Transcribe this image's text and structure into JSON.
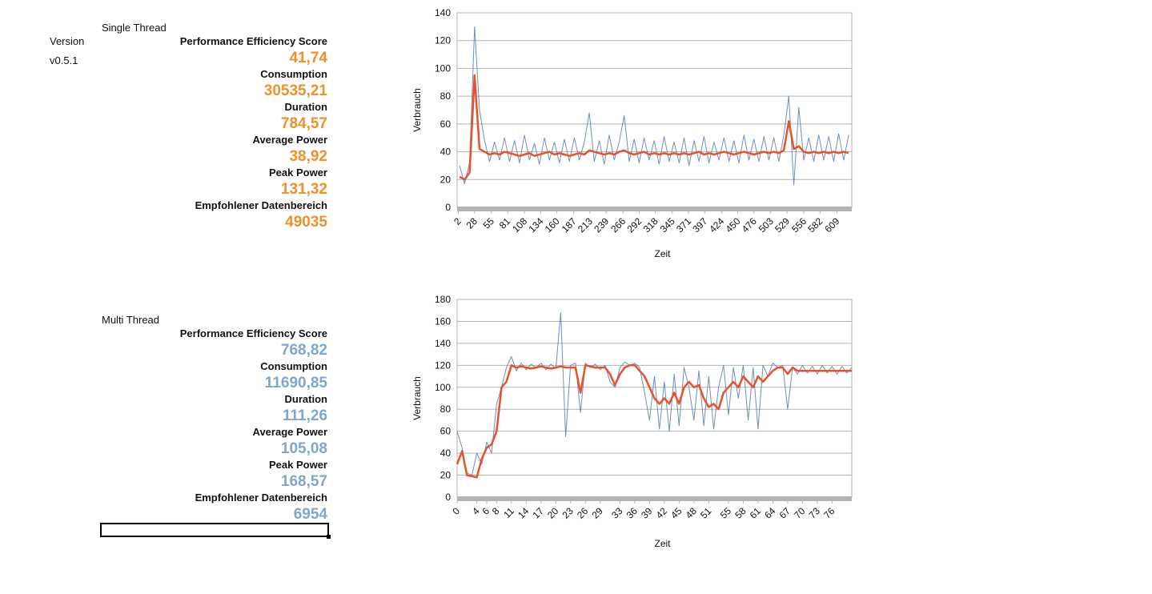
{
  "sheet": {
    "version_label": "Version",
    "version": "v0.5.1",
    "sections": [
      {
        "title": "Single Thread",
        "value_color": "#f0902a",
        "metrics": [
          {
            "label": "Performance Efficiency Score",
            "value": "41,74"
          },
          {
            "label": "Consumption",
            "value": "30535,21"
          },
          {
            "label": "Duration",
            "value": "784,57"
          },
          {
            "label": "Average Power",
            "value": "38,92"
          },
          {
            "label": "Peak Power",
            "value": "131,32"
          },
          {
            "label": "Empfohlener Datenbereich",
            "value": "49035"
          }
        ]
      },
      {
        "title": "Multi Thread",
        "value_color": "#7ea6d0",
        "metrics": [
          {
            "label": "Performance Efficiency Score",
            "value": "768,82"
          },
          {
            "label": "Consumption",
            "value": "11690,85"
          },
          {
            "label": "Duration",
            "value": "111,26"
          },
          {
            "label": "Average Power",
            "value": "105,08"
          },
          {
            "label": "Peak Power",
            "value": "168,57"
          },
          {
            "label": "Empfohlener Datenbereich",
            "value": "6954"
          }
        ]
      }
    ]
  },
  "chart_data": [
    {
      "type": "line",
      "x_label": "Zeit",
      "y_label": "Verbrauch",
      "grid": true,
      "xlim": [
        0,
        633
      ],
      "ylim": [
        0,
        140
      ],
      "xticks": [
        2,
        28,
        55,
        81,
        108,
        134,
        160,
        187,
        213,
        239,
        266,
        292,
        318,
        345,
        371,
        397,
        424,
        450,
        476,
        503,
        529,
        556,
        582,
        609
      ],
      "yticks": [
        0,
        20,
        40,
        60,
        80,
        100,
        120,
        140
      ],
      "x": [
        4,
        12,
        20,
        28,
        36,
        44,
        52,
        60,
        68,
        76,
        84,
        92,
        100,
        108,
        116,
        124,
        132,
        140,
        148,
        156,
        164,
        172,
        180,
        188,
        196,
        204,
        212,
        220,
        228,
        236,
        244,
        252,
        260,
        268,
        276,
        284,
        292,
        300,
        308,
        316,
        324,
        332,
        340,
        348,
        356,
        364,
        372,
        380,
        388,
        396,
        404,
        412,
        420,
        428,
        436,
        444,
        452,
        460,
        468,
        476,
        484,
        492,
        500,
        508,
        516,
        524,
        532,
        540,
        548,
        556,
        564,
        572,
        580,
        588,
        596,
        604,
        612,
        620,
        628
      ],
      "series": [
        {
          "color": "#3f6aa8",
          "values": [
            30,
            17,
            32,
            130,
            70,
            48,
            33,
            47,
            34,
            50,
            33,
            48,
            32,
            52,
            34,
            46,
            31,
            50,
            34,
            47,
            32,
            49,
            33,
            50,
            34,
            47,
            68,
            33,
            48,
            31,
            52,
            34,
            47,
            66,
            33,
            49,
            32,
            50,
            34,
            48,
            31,
            51,
            33,
            47,
            32,
            50,
            30,
            48,
            33,
            51,
            32,
            47,
            34,
            50,
            33,
            48,
            32,
            52,
            34,
            49,
            33,
            51,
            34,
            50,
            33,
            52,
            80,
            16,
            72,
            34,
            50,
            33,
            52,
            34,
            51,
            33,
            53,
            34,
            52
          ]
        },
        {
          "color": "#e8522a",
          "values": [
            22,
            20,
            25,
            95,
            42,
            40,
            38,
            39,
            38,
            40,
            39,
            38,
            37,
            38,
            39,
            37,
            38,
            39,
            40,
            38,
            39,
            38,
            37,
            38,
            39,
            38,
            41,
            40,
            39,
            38,
            39,
            38,
            40,
            41,
            39,
            38,
            39,
            40,
            38,
            39,
            38,
            39,
            38,
            39,
            38,
            39,
            38,
            39,
            40,
            38,
            39,
            38,
            39,
            40,
            39,
            38,
            39,
            40,
            39,
            38,
            39,
            40,
            39,
            40,
            39,
            41,
            62,
            42,
            44,
            40,
            39,
            40,
            39,
            40,
            39,
            40,
            39,
            40,
            39
          ]
        }
      ]
    },
    {
      "type": "line",
      "x_label": "Zeit",
      "y_label": "Verbrauch",
      "grid": true,
      "xlim": [
        0,
        80
      ],
      "ylim": [
        0,
        180
      ],
      "xticks": [
        0,
        4,
        6,
        8,
        11,
        14,
        17,
        20,
        23,
        26,
        29,
        33,
        36,
        39,
        42,
        45,
        48,
        51,
        55,
        58,
        61,
        64,
        67,
        70,
        73,
        76
      ],
      "yticks": [
        0,
        20,
        40,
        60,
        80,
        100,
        120,
        140,
        160,
        180
      ],
      "x": [
        0,
        1,
        2,
        3,
        4,
        5,
        6,
        7,
        8,
        9,
        10,
        11,
        12,
        13,
        14,
        15,
        16,
        17,
        18,
        19,
        20,
        21,
        22,
        23,
        24,
        25,
        26,
        27,
        28,
        29,
        30,
        31,
        32,
        33,
        34,
        35,
        36,
        37,
        38,
        39,
        40,
        41,
        42,
        43,
        44,
        45,
        46,
        47,
        48,
        49,
        50,
        51,
        52,
        53,
        54,
        55,
        56,
        57,
        58,
        59,
        60,
        61,
        62,
        63,
        64,
        65,
        66,
        67,
        68,
        69,
        70,
        71,
        72,
        73,
        74,
        75,
        76,
        77,
        78,
        79,
        80
      ],
      "series": [
        {
          "color": "#3f6aa8",
          "values": [
            60,
            45,
            22,
            20,
            40,
            30,
            50,
            40,
            85,
            100,
            118,
            128,
            115,
            122,
            116,
            121,
            118,
            122,
            116,
            121,
            117,
            168,
            55,
            120,
            122,
            77,
            122,
            118,
            121,
            116,
            120,
            105,
            100,
            118,
            123,
            120,
            122,
            118,
            95,
            70,
            110,
            62,
            105,
            60,
            112,
            65,
            118,
            100,
            70,
            115,
            65,
            110,
            62,
            100,
            120,
            75,
            118,
            90,
            120,
            70,
            118,
            62,
            120,
            110,
            122,
            118,
            120,
            80,
            118,
            112,
            120,
            113,
            119,
            112,
            120,
            113,
            119,
            112,
            119,
            113,
            118
          ]
        },
        {
          "color": "#e8522a",
          "values": [
            30,
            42,
            20,
            19,
            18,
            35,
            45,
            48,
            60,
            100,
            105,
            120,
            118,
            119,
            118,
            117,
            118,
            119,
            118,
            117,
            118,
            119,
            118,
            118,
            118,
            95,
            120,
            119,
            118,
            118,
            118,
            112,
            102,
            112,
            118,
            120,
            120,
            115,
            110,
            100,
            90,
            85,
            90,
            85,
            95,
            85,
            100,
            105,
            100,
            102,
            90,
            82,
            85,
            80,
            95,
            100,
            105,
            100,
            110,
            105,
            100,
            110,
            105,
            110,
            115,
            118,
            118,
            112,
            118,
            115,
            115,
            115,
            115,
            115,
            115,
            115,
            115,
            115,
            115,
            115,
            115
          ]
        }
      ]
    }
  ]
}
